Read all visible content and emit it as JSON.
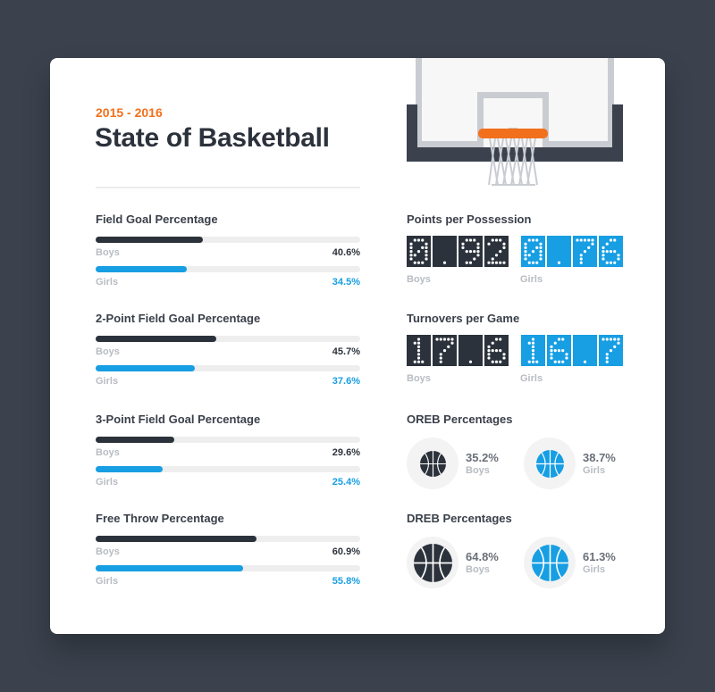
{
  "header": {
    "season": "2015 - 2016",
    "title": "State of Basketball"
  },
  "colors": {
    "boys": "#2c323b",
    "girls": "#179ee3",
    "accent": "#f2701c"
  },
  "chart_data": [
    {
      "type": "bar",
      "title": "Field Goal Percentage",
      "series": [
        {
          "name": "Boys",
          "value": 40.6,
          "label": "40.6%"
        },
        {
          "name": "Girls",
          "value": 34.5,
          "label": "34.5%"
        }
      ]
    },
    {
      "type": "bar",
      "title": "2-Point Field Goal Percentage",
      "series": [
        {
          "name": "Boys",
          "value": 45.7,
          "label": "45.7%"
        },
        {
          "name": "Girls",
          "value": 37.6,
          "label": "37.6%"
        }
      ]
    },
    {
      "type": "bar",
      "title": "3-Point Field Goal Percentage",
      "series": [
        {
          "name": "Boys",
          "value": 29.6,
          "label": "29.6%"
        },
        {
          "name": "Girls",
          "value": 25.4,
          "label": "25.4%"
        }
      ]
    },
    {
      "type": "bar",
      "title": "Free Throw Percentage",
      "series": [
        {
          "name": "Boys",
          "value": 60.9,
          "label": "60.9%"
        },
        {
          "name": "Girls",
          "value": 55.8,
          "label": "55.8%"
        }
      ]
    },
    {
      "type": "table",
      "title": "Points per Possession",
      "series": [
        {
          "name": "Boys",
          "value": 0.92,
          "display": "0.92"
        },
        {
          "name": "Girls",
          "value": 0.76,
          "display": "0.76"
        }
      ]
    },
    {
      "type": "table",
      "title": "Turnovers per Game",
      "series": [
        {
          "name": "Boys",
          "value": 17.6,
          "display": "17.6"
        },
        {
          "name": "Girls",
          "value": 16.7,
          "display": "16.7"
        }
      ]
    },
    {
      "type": "table",
      "title": "OREB Percentages",
      "series": [
        {
          "name": "Boys",
          "value": 35.2,
          "label": "35.2%"
        },
        {
          "name": "Girls",
          "value": 38.7,
          "label": "38.7%"
        }
      ]
    },
    {
      "type": "table",
      "title": "DREB Percentages",
      "series": [
        {
          "name": "Boys",
          "value": 64.8,
          "label": "64.8%"
        },
        {
          "name": "Girls",
          "value": 61.3,
          "label": "61.3%"
        }
      ]
    }
  ],
  "icons": {
    "hoop": "basketball-hoop-icon",
    "ball": "basketball-icon"
  }
}
